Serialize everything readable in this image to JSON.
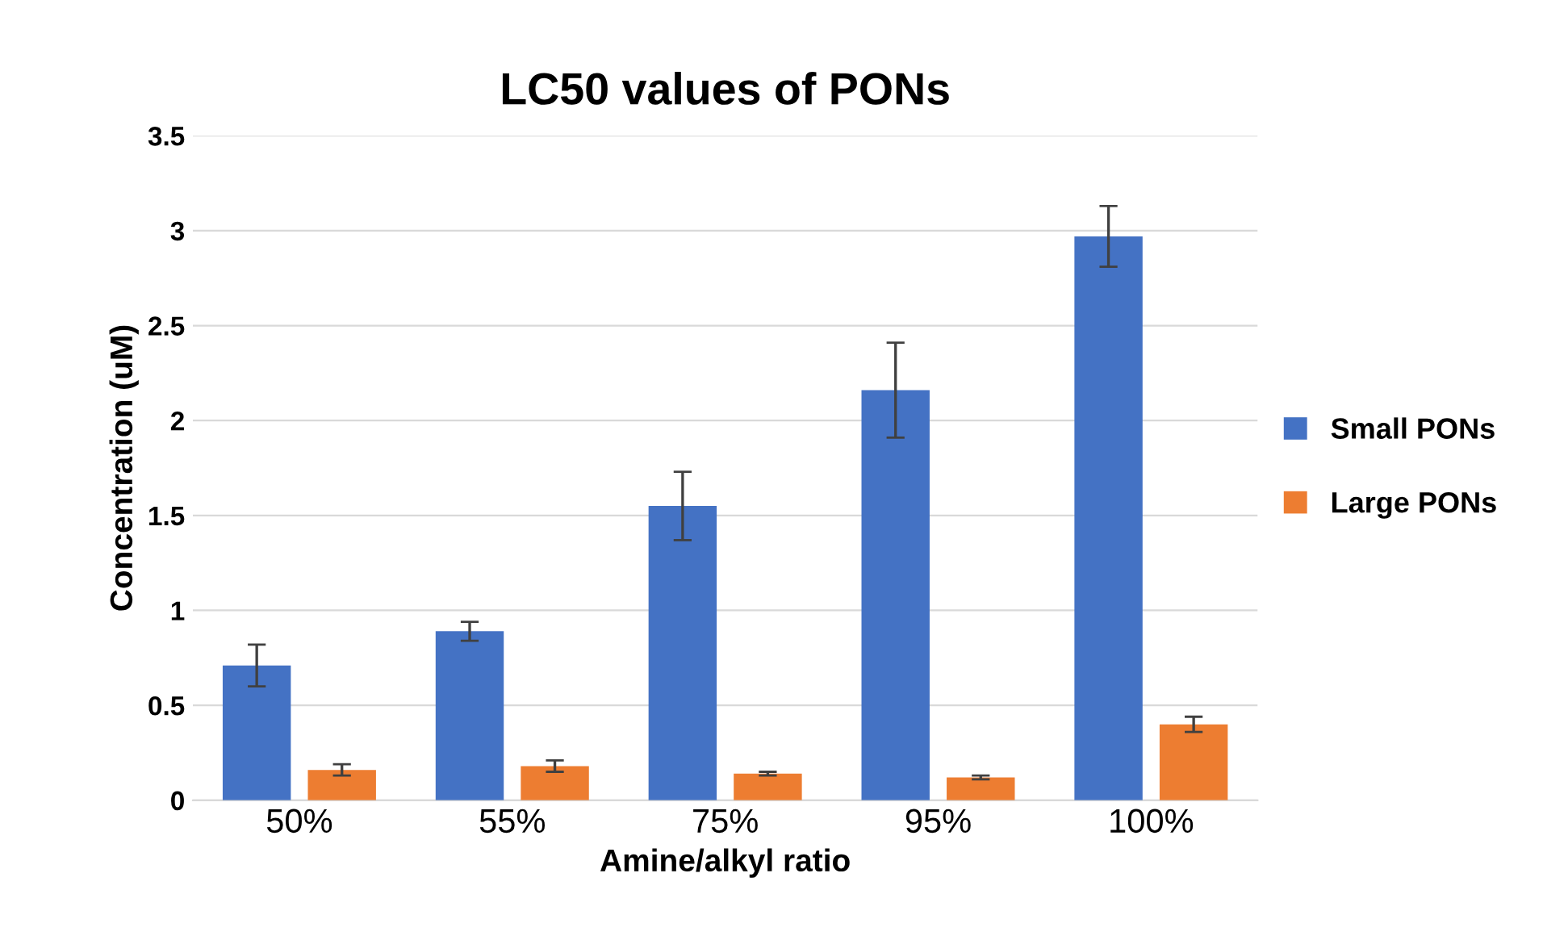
{
  "chart_data": {
    "type": "bar",
    "title": "LC50 values of PONs",
    "xlabel": "Amine/alkyl ratio",
    "ylabel": "Concentration (uM)",
    "categories": [
      "50%",
      "55%",
      "75%",
      "95%",
      "100%"
    ],
    "series": [
      {
        "name": "Small PONs",
        "color": "#4472c4",
        "values": [
          0.71,
          0.89,
          1.55,
          2.16,
          2.97
        ],
        "errors": [
          0.11,
          0.05,
          0.18,
          [
            1.91,
            2.41
          ],
          0.16
        ]
      },
      {
        "name": "Large PONs",
        "color": "#ed7d31",
        "values": [
          0.16,
          0.18,
          0.14,
          0.12,
          0.4
        ],
        "errors": [
          0.03,
          0.03,
          0.01,
          0.01,
          0.04
        ]
      }
    ],
    "ylim": [
      0,
      3.5
    ],
    "yticks": [
      0,
      0.5,
      1,
      1.5,
      2,
      2.5,
      3,
      3.5
    ],
    "grid": "y",
    "legend": "right"
  }
}
